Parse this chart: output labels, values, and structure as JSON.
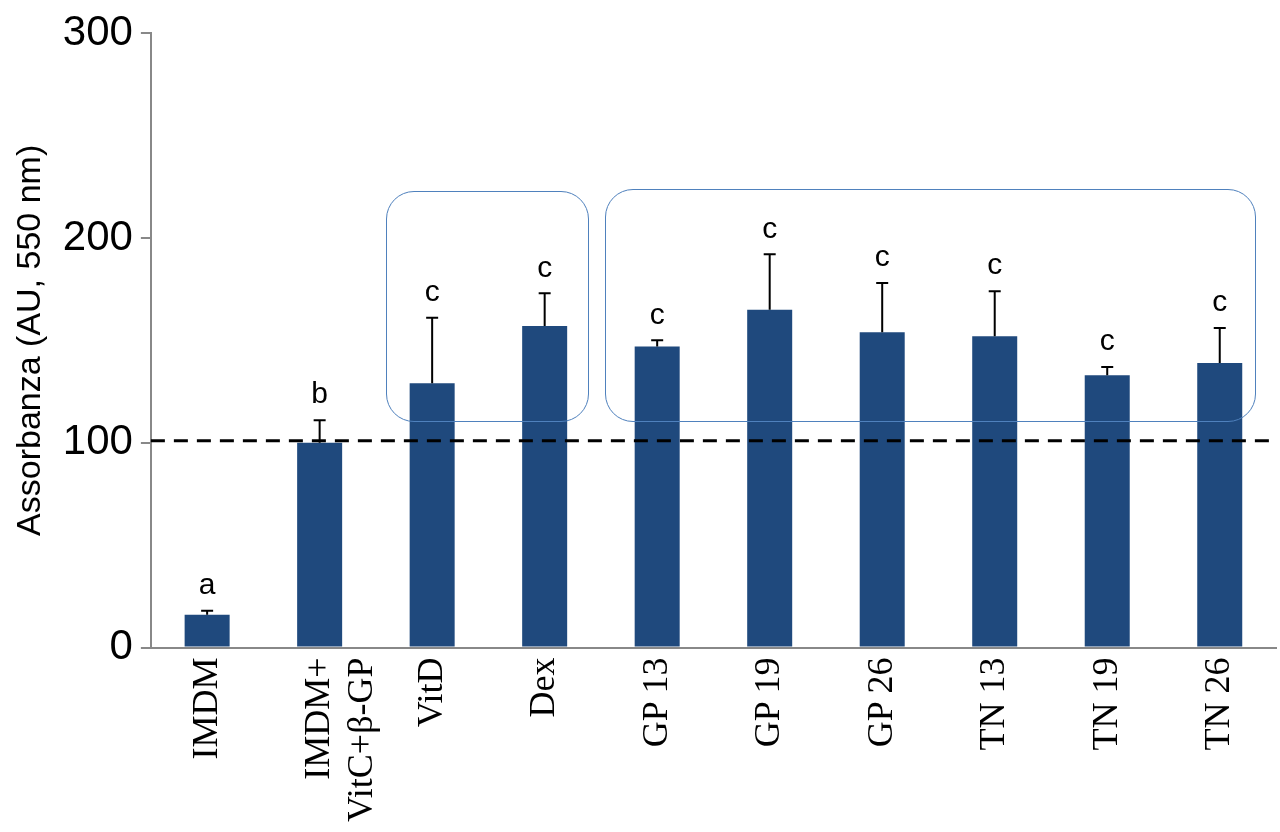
{
  "chart_data": {
    "type": "bar",
    "ylabel": "Assorbanza (AU, 550 nm)",
    "categories": [
      "IMDM",
      "IMDM+\nVitC+β-GP",
      "VitD",
      "Dex",
      "GP 13",
      "GP 19",
      "GP 26",
      "TN 13",
      "TN 19",
      "TN 26"
    ],
    "values": [
      16,
      100,
      129,
      157,
      147,
      165,
      154,
      152,
      133,
      139
    ],
    "errors": [
      [
        16,
        18
      ],
      [
        100,
        111
      ],
      [
        129,
        161
      ],
      [
        157,
        173
      ],
      [
        147,
        150
      ],
      [
        165,
        192
      ],
      [
        154,
        178
      ],
      [
        152,
        174
      ],
      [
        133,
        137
      ],
      [
        139,
        156
      ]
    ],
    "color": "#1f497d",
    "ylim": [
      0,
      300
    ],
    "yticks": [
      0,
      100,
      200,
      300
    ],
    "grid": false,
    "legend": false,
    "ref_lines": [
      {
        "axis": "y",
        "value": 101,
        "color": "#000000",
        "line_style": "dashed"
      }
    ],
    "annotations": [
      {
        "text": "a",
        "x": "IMDM",
        "y": 18
      },
      {
        "text": "b",
        "x": "IMDM+\nVitC+β-GP",
        "y": 111
      },
      {
        "text": "c",
        "x": "VitD",
        "y": 161
      },
      {
        "text": "c",
        "x": "Dex",
        "y": 173
      },
      {
        "text": "c",
        "x": "GP 13",
        "y": 150
      },
      {
        "text": "c",
        "x": "GP 19",
        "y": 192
      },
      {
        "text": "c",
        "x": "GP 26",
        "y": 178
      },
      {
        "text": "c",
        "x": "TN 13",
        "y": 174
      },
      {
        "text": "c",
        "x": "TN 19",
        "y": 137
      },
      {
        "text": "c",
        "x": "TN 26",
        "y": 156
      }
    ]
  }
}
